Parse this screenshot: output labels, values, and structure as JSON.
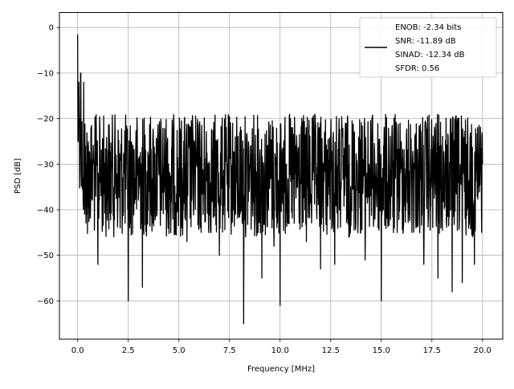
{
  "chart_data": {
    "type": "line",
    "title": "",
    "xlabel": "Frequency [MHz]",
    "ylabel": "PSD [dB]",
    "xlim": [
      -0.9,
      21.0
    ],
    "ylim": [
      -68.4,
      3.3
    ],
    "xticks": [
      0.0,
      2.5,
      5.0,
      7.5,
      10.0,
      12.5,
      15.0,
      17.5,
      20.0
    ],
    "xtick_labels": [
      "0.0",
      "2.5",
      "5.0",
      "7.5",
      "10.0",
      "12.5",
      "15.0",
      "17.5",
      "20.0"
    ],
    "yticks": [
      0,
      -10,
      -20,
      -30,
      -40,
      -50,
      -60
    ],
    "ytick_labels": [
      "0",
      "−10",
      "−20",
      "−30",
      "−40",
      "−50",
      "−60"
    ],
    "grid": true,
    "legend_position": "top-right",
    "legend_lines": [
      "ENOB: -2.34 bits",
      "SNR: -11.89 dB",
      "SINAD: -12.34 dB",
      "SFDR: 0.56"
    ],
    "series": [
      {
        "color": "#000000",
        "x": [
          0.0,
          0.02,
          0.05,
          0.08,
          0.12,
          0.15,
          0.2,
          0.25,
          0.3,
          0.4,
          0.5,
          0.6,
          0.75,
          1.0,
          1.1,
          1.2,
          1.5,
          1.7,
          1.9,
          2.1,
          2.3,
          2.5,
          2.7,
          2.9,
          3.2,
          3.5,
          3.8,
          4.2,
          4.6,
          5.0,
          5.4,
          5.8,
          6.2,
          6.6,
          7.0,
          7.4,
          7.8,
          8.2,
          8.6,
          8.9,
          9.1,
          9.4,
          9.7,
          10.0,
          10.3,
          10.7,
          11.0,
          11.3,
          11.6,
          12.0,
          12.4,
          12.7,
          13.0,
          13.4,
          13.8,
          14.2,
          14.6,
          15.0,
          15.3,
          15.6,
          16.0,
          16.4,
          16.8,
          17.1,
          17.4,
          17.8,
          18.1,
          18.5,
          18.8,
          19.0,
          19.3,
          19.6,
          20.0
        ],
        "y": [
          -1.5,
          -25,
          -12,
          -20,
          -27,
          -10,
          -24,
          -33,
          -12,
          -39,
          -26,
          -30,
          -29,
          -52,
          -22,
          -35,
          -27,
          -31,
          -28,
          -44,
          -30,
          -60,
          -29,
          -33,
          -57,
          -28,
          -38,
          -30,
          -45,
          -31,
          -47,
          -29,
          -41,
          -33,
          -50,
          -30,
          -41,
          -65,
          -29,
          -45,
          -55,
          -33,
          -48,
          -61,
          -30,
          -43,
          -35,
          -47,
          -30,
          -53,
          -33,
          -52,
          -34,
          -46,
          -30,
          -51,
          -32,
          -60,
          -34,
          -45,
          -31,
          -42,
          -30,
          -52,
          -35,
          -55,
          -30,
          -58,
          -34,
          -56,
          -36,
          -52,
          -30
        ],
        "y_envelope_upper": -16,
        "y_envelope_lower": -45
      }
    ]
  }
}
